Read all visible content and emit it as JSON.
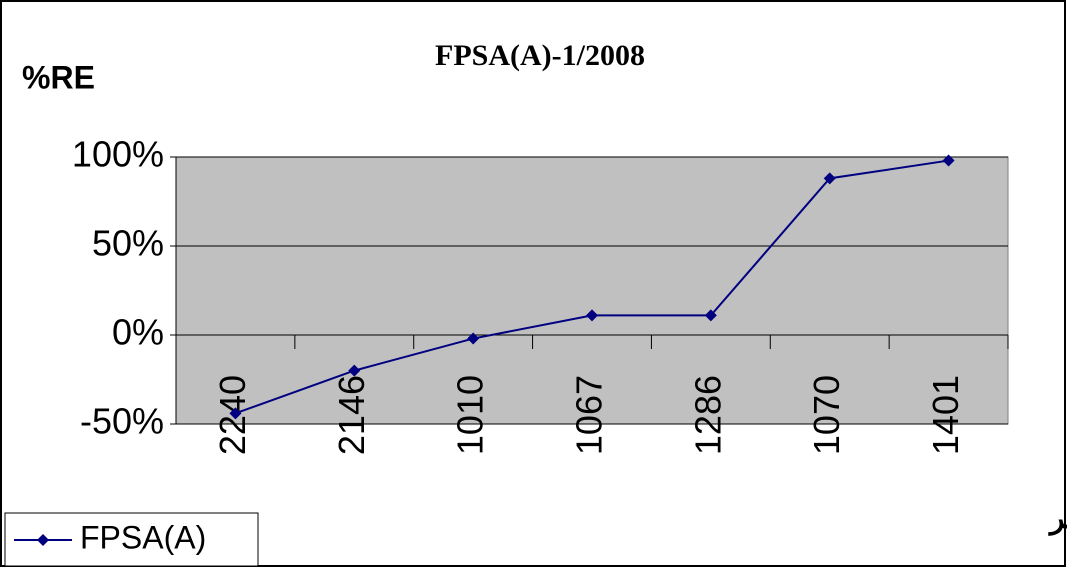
{
  "chart_data": {
    "type": "line",
    "title": "FPSA(A)-1/2008",
    "ylabel": "%RE",
    "xlabel": "رمز المخبر",
    "categories": [
      "2240",
      "2146",
      "1010",
      "1067",
      "1286",
      "1070",
      "1401"
    ],
    "series": [
      {
        "name": "FPSA(A)",
        "color": "#000080",
        "values": [
          -44,
          -20,
          -2,
          11,
          11,
          88,
          98
        ]
      }
    ],
    "ylim": [
      -50,
      100
    ],
    "yticks": [
      {
        "value": -50,
        "label": "-50%"
      },
      {
        "value": 0,
        "label": "0%"
      },
      {
        "value": 50,
        "label": "50%"
      },
      {
        "value": 100,
        "label": "100%"
      }
    ],
    "grid": true,
    "legend": "bottom-left"
  }
}
